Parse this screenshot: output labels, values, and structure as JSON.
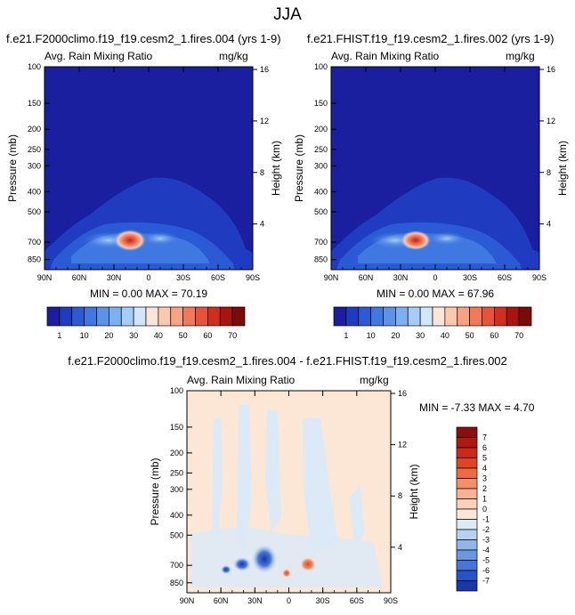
{
  "title": "JJA",
  "chart_data": [
    {
      "type": "heatmap",
      "title": "f.e21.F2000climo.f19_f19.cesm2_1.fires.004 (yrs 1-9)",
      "left_label": "Avg. Rain Mixing Ratio",
      "right_label": "mg/kg",
      "ylabel": "Pressure (mb)",
      "ylabel_right": "Height (km)",
      "x_ticks": [
        "90N",
        "60N",
        "30N",
        "0",
        "30S",
        "60S",
        "90S"
      ],
      "y_ticks": [
        "100",
        "150",
        "200",
        "250",
        "300",
        "400",
        "500",
        "700",
        "850"
      ],
      "height_ticks": [
        "16",
        "12",
        "8",
        "4"
      ],
      "stats_text": "MIN =   0.00   MAX =   70.19",
      "min": 0.0,
      "max": 70.19
    },
    {
      "type": "heatmap",
      "title": "f.e21.FHIST.f19_f19.cesm2_1.fires.002 (yrs 1-9)",
      "left_label": "Avg. Rain Mixing Ratio",
      "right_label": "mg/kg",
      "ylabel": "Pressure (mb)",
      "ylabel_right": "Height (km)",
      "x_ticks": [
        "90N",
        "60N",
        "30N",
        "0",
        "30S",
        "60S",
        "90S"
      ],
      "y_ticks": [
        "100",
        "150",
        "200",
        "250",
        "300",
        "400",
        "500",
        "700",
        "850"
      ],
      "height_ticks": [
        "16",
        "12",
        "8",
        "4"
      ],
      "stats_text": "MIN =   0.00   MAX =   67.96",
      "min": 0.0,
      "max": 67.96
    },
    {
      "type": "heatmap",
      "title": "f.e21.F2000climo.f19_f19.cesm2_1.fires.004 - f.e21.FHIST.f19_f19.cesm2_1.fires.002",
      "left_label": "Avg. Rain Mixing Ratio",
      "right_label": "mg/kg",
      "ylabel": "Pressure (mb)",
      "ylabel_right": "Height (km)",
      "x_ticks": [
        "90N",
        "60N",
        "30N",
        "0",
        "30S",
        "60S",
        "90S"
      ],
      "y_ticks": [
        "100",
        "150",
        "200",
        "250",
        "300",
        "400",
        "500",
        "700",
        "850"
      ],
      "height_ticks": [
        "16",
        "12",
        "8",
        "4"
      ],
      "stats_text": "MIN = -7.33   MAX =   4.70",
      "min": -7.33,
      "max": 4.7
    }
  ],
  "colorbar_main": {
    "labels": [
      "1",
      "10",
      "20",
      "30",
      "40",
      "50",
      "60",
      "70"
    ],
    "colors": [
      "#1a1fa0",
      "#1f3cc0",
      "#2a5ad4",
      "#3f78e0",
      "#5b93e8",
      "#7db0ef",
      "#a6cdf5",
      "#d2e6fa",
      "#fde6d8",
      "#fbc9ae",
      "#f6a283",
      "#f07a5a",
      "#e6533a",
      "#d02f1e",
      "#a8140f",
      "#7a0b09"
    ]
  },
  "colorbar_diff": {
    "labels": [
      "7",
      "6",
      "5",
      "4",
      "3",
      "2",
      "1",
      "0",
      "-1",
      "-2",
      "-3",
      "-4",
      "-5",
      "-6",
      "-7"
    ],
    "colors": [
      "#8a0f0c",
      "#b0180f",
      "#cc2a17",
      "#e24423",
      "#ee6a41",
      "#f58f68",
      "#f8b293",
      "#fbd0b8",
      "#fce6d6",
      "#dce9f7",
      "#b7d2f1",
      "#90b6e9",
      "#6b96e0",
      "#4876d6",
      "#2653c6",
      "#1a36ac"
    ]
  }
}
